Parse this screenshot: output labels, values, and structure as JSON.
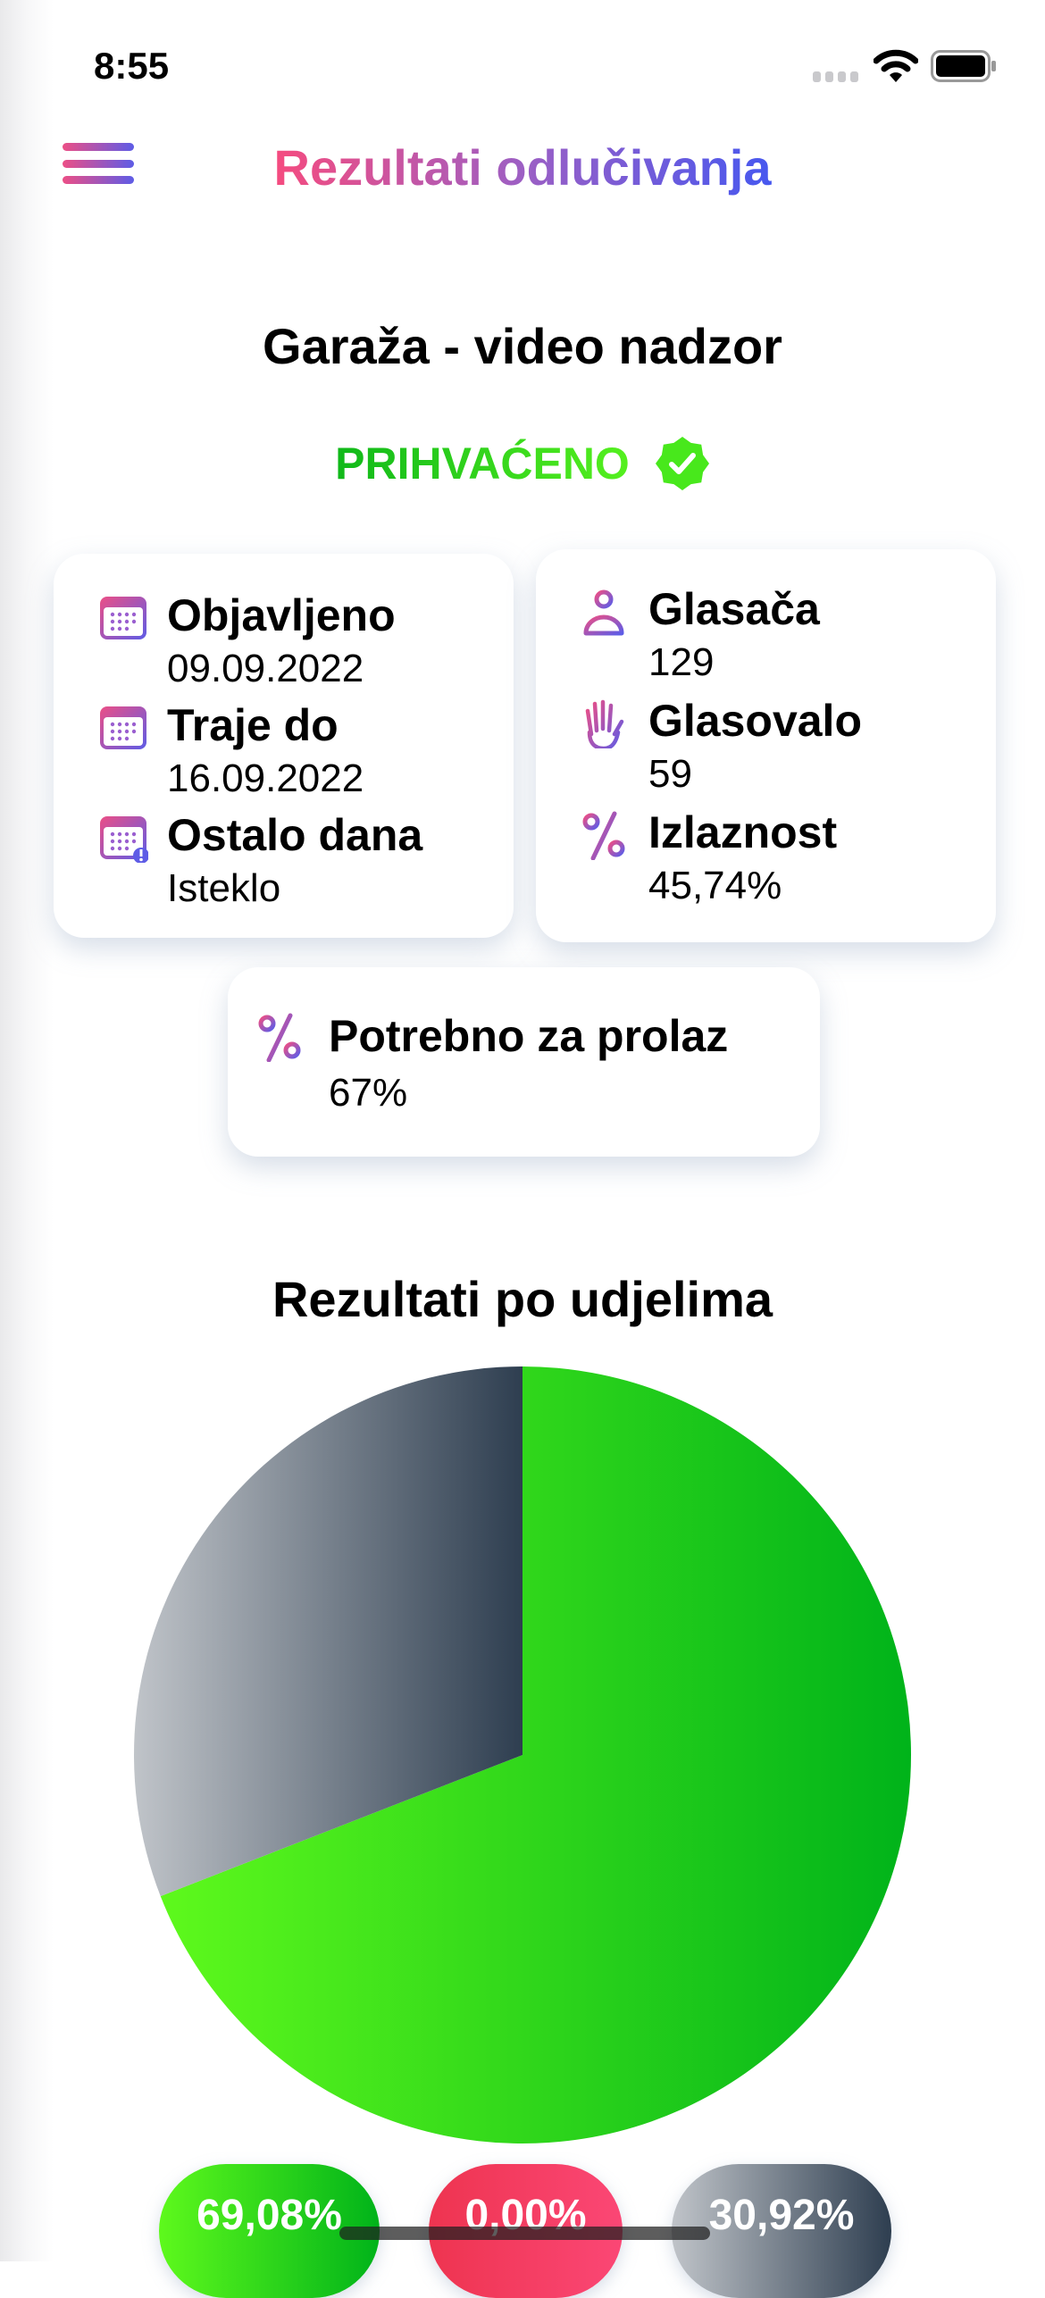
{
  "status_bar": {
    "time": "8:55"
  },
  "header": {
    "title": "Rezultati odlučivanja",
    "menu_icon": "hamburger-icon"
  },
  "poll": {
    "title": "Garaža - video nadzor",
    "status": "PRIHVAĆENO",
    "status_icon": "verified-badge-icon",
    "status_color": "#22c51c"
  },
  "info_left": [
    {
      "label": "Objavljeno",
      "value": "09.09.2022",
      "icon": "calendar-icon"
    },
    {
      "label": "Traje do",
      "value": "16.09.2022",
      "icon": "calendar-icon"
    },
    {
      "label": "Ostalo dana",
      "value": "Isteklo",
      "icon": "calendar-alert-icon"
    }
  ],
  "info_right": [
    {
      "label": "Glasača",
      "value": "129",
      "icon": "person-icon"
    },
    {
      "label": "Glasovalo",
      "value": "59",
      "icon": "raised-hand-icon"
    },
    {
      "label": "Izlaznost",
      "value": "45,74%",
      "icon": "percent-icon"
    }
  ],
  "info_bottom": {
    "label": "Potrebno za prolaz",
    "value": "67%",
    "icon": "percent-icon"
  },
  "chart_data": {
    "type": "pie",
    "title": "Rezultati po udjelima",
    "slices": [
      {
        "value": 69.08,
        "label": "69,08%",
        "colors": [
          "#5ef91c",
          "#00b31a"
        ]
      },
      {
        "value": 0.0,
        "label": "0,00%",
        "colors": [
          "#ee3450",
          "#fb4775"
        ]
      },
      {
        "value": 30.92,
        "label": "30,92%",
        "colors": [
          "#c0c4c9",
          "#2e3e50"
        ]
      }
    ]
  }
}
